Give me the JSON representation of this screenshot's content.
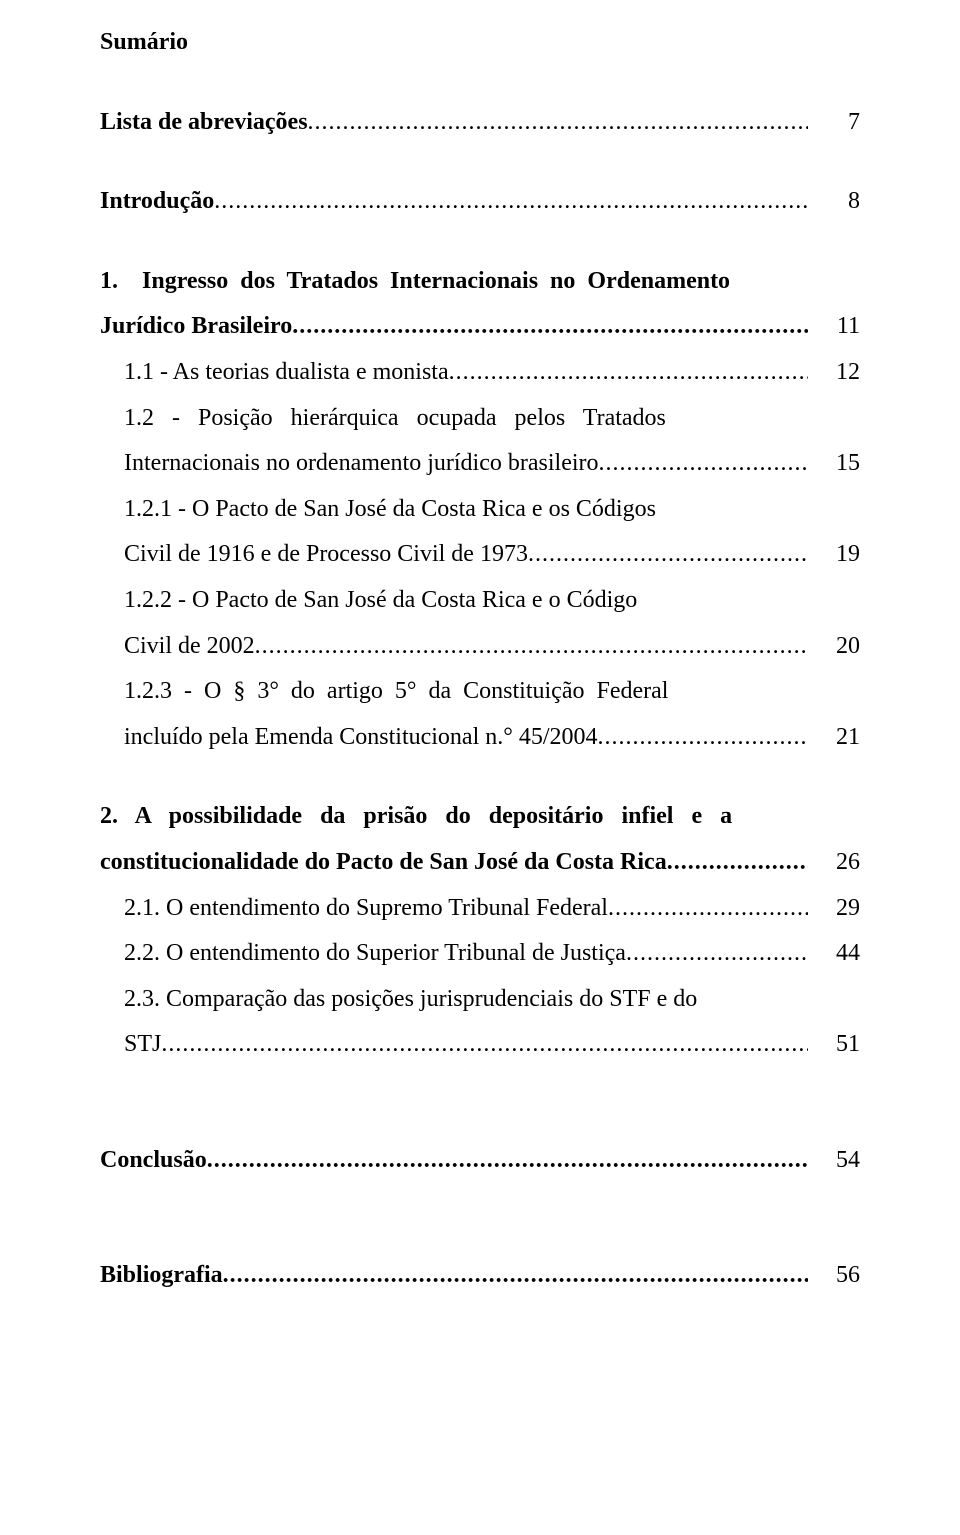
{
  "title": "Sumário",
  "dots": "................................................................................................................................................................................................................",
  "entries": [
    {
      "label": "Lista de abreviações",
      "page": "7",
      "bold": true
    },
    {
      "label": "Introdução",
      "page": "8",
      "bold": true
    },
    {
      "label": "1.    Ingresso  dos  Tratados  Internacionais  no  Ordenamento",
      "bold": true,
      "nopage": true
    },
    {
      "label": "Jurídico Brasileiro",
      "page": "11",
      "bold": true
    },
    {
      "label": "    1.1 - As teorias dualista e monista",
      "page": "12"
    },
    {
      "label": "    1.2   -   Posição   hierárquica   ocupada   pelos   Tratados",
      "nopage": true
    },
    {
      "label": "    Internacionais no ordenamento jurídico brasileiro",
      "page": "15"
    },
    {
      "label": "    1.2.1 - O Pacto de San José da Costa Rica e os Códigos",
      "nopage": true
    },
    {
      "label": "    Civil de 1916 e de Processo Civil de 1973",
      "page": "19"
    },
    {
      "label": "    1.2.2 - O Pacto de San José da Costa Rica e o Código",
      "nopage": true
    },
    {
      "label": "    Civil de 2002",
      "page": "20"
    },
    {
      "label": "    1.2.3  -  O  §  3°  do  artigo  5°  da  Constituição  Federal",
      "nopage": true
    },
    {
      "label": "    incluído pela Emenda Constitucional n.° 45/2004",
      "page": "21"
    },
    {
      "label": "2.   A   possibilidade   da   prisão   do   depositário   infiel   e   a",
      "bold": true,
      "nopage": true
    },
    {
      "label": "constitucionalidade do Pacto de San José da Costa Rica",
      "page": "26",
      "bold": true
    },
    {
      "label": "    2.1. O entendimento do Supremo Tribunal Federal",
      "page": "29"
    },
    {
      "label": "    2.2. O entendimento do Superior Tribunal de Justiça",
      "page": "44"
    },
    {
      "label": "    2.3. Comparação das posições jurisprudenciais do STF e do",
      "nopage": true
    },
    {
      "label": "    STJ",
      "page": "51"
    },
    {
      "label": "Conclusão",
      "page": "54",
      "bold": true
    },
    {
      "label": "Bibliografia",
      "page": "56",
      "bold": true
    }
  ]
}
